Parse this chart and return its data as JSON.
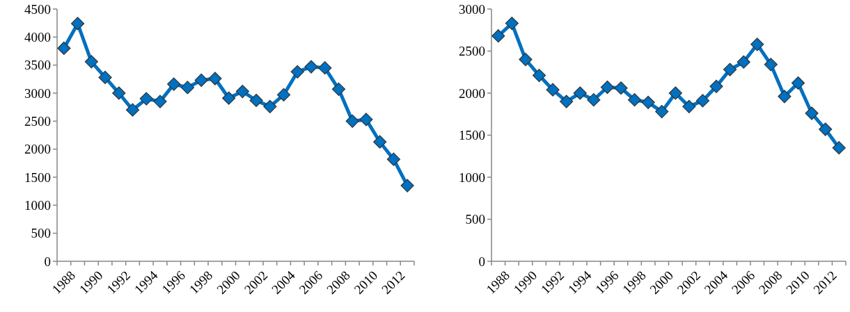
{
  "chart_data": [
    {
      "type": "line",
      "categories": [
        "1988",
        null,
        "1990",
        null,
        "1992",
        null,
        "1994",
        null,
        "1996",
        null,
        "1998",
        null,
        "2000",
        null,
        "2002",
        null,
        "2004",
        null,
        "2006",
        null,
        "2008",
        null,
        "2010",
        null,
        "2012",
        null
      ],
      "series": [
        {
          "color": "#0070c0",
          "values": [
            3800,
            4240,
            3560,
            3280,
            3000,
            2700,
            2900,
            2850,
            3160,
            3100,
            3230,
            3260,
            2910,
            3030,
            2870,
            2760,
            2970,
            3380,
            3470,
            3450,
            3070,
            2500,
            2530,
            2130,
            1820,
            1350
          ]
        }
      ],
      "ylim": [
        0,
        4500
      ],
      "yticks": [
        0,
        500,
        1000,
        1500,
        2000,
        2500,
        3000,
        3500,
        4000,
        4500
      ],
      "marker": "diamond",
      "line_style": "solid"
    },
    {
      "type": "line",
      "categories": [
        "1988",
        null,
        "1990",
        null,
        "1992",
        null,
        "1994",
        null,
        "1996",
        null,
        "1998",
        null,
        "2000",
        null,
        "2002",
        null,
        "2004",
        null,
        "2006",
        null,
        "2008",
        null,
        "2010",
        null,
        "2012",
        null
      ],
      "series": [
        {
          "color": "#0070c0",
          "values": [
            2680,
            2830,
            2400,
            2210,
            2040,
            1900,
            2000,
            1920,
            2070,
            2060,
            1920,
            1890,
            1780,
            2000,
            1840,
            1910,
            2080,
            2280,
            2370,
            2580,
            2340,
            1960,
            2120,
            1760,
            1570,
            1350
          ]
        }
      ],
      "ylim": [
        0,
        3000
      ],
      "yticks": [
        0,
        500,
        1000,
        1500,
        2000,
        2500,
        3000
      ],
      "marker": "diamond",
      "line_style": "solid"
    }
  ]
}
